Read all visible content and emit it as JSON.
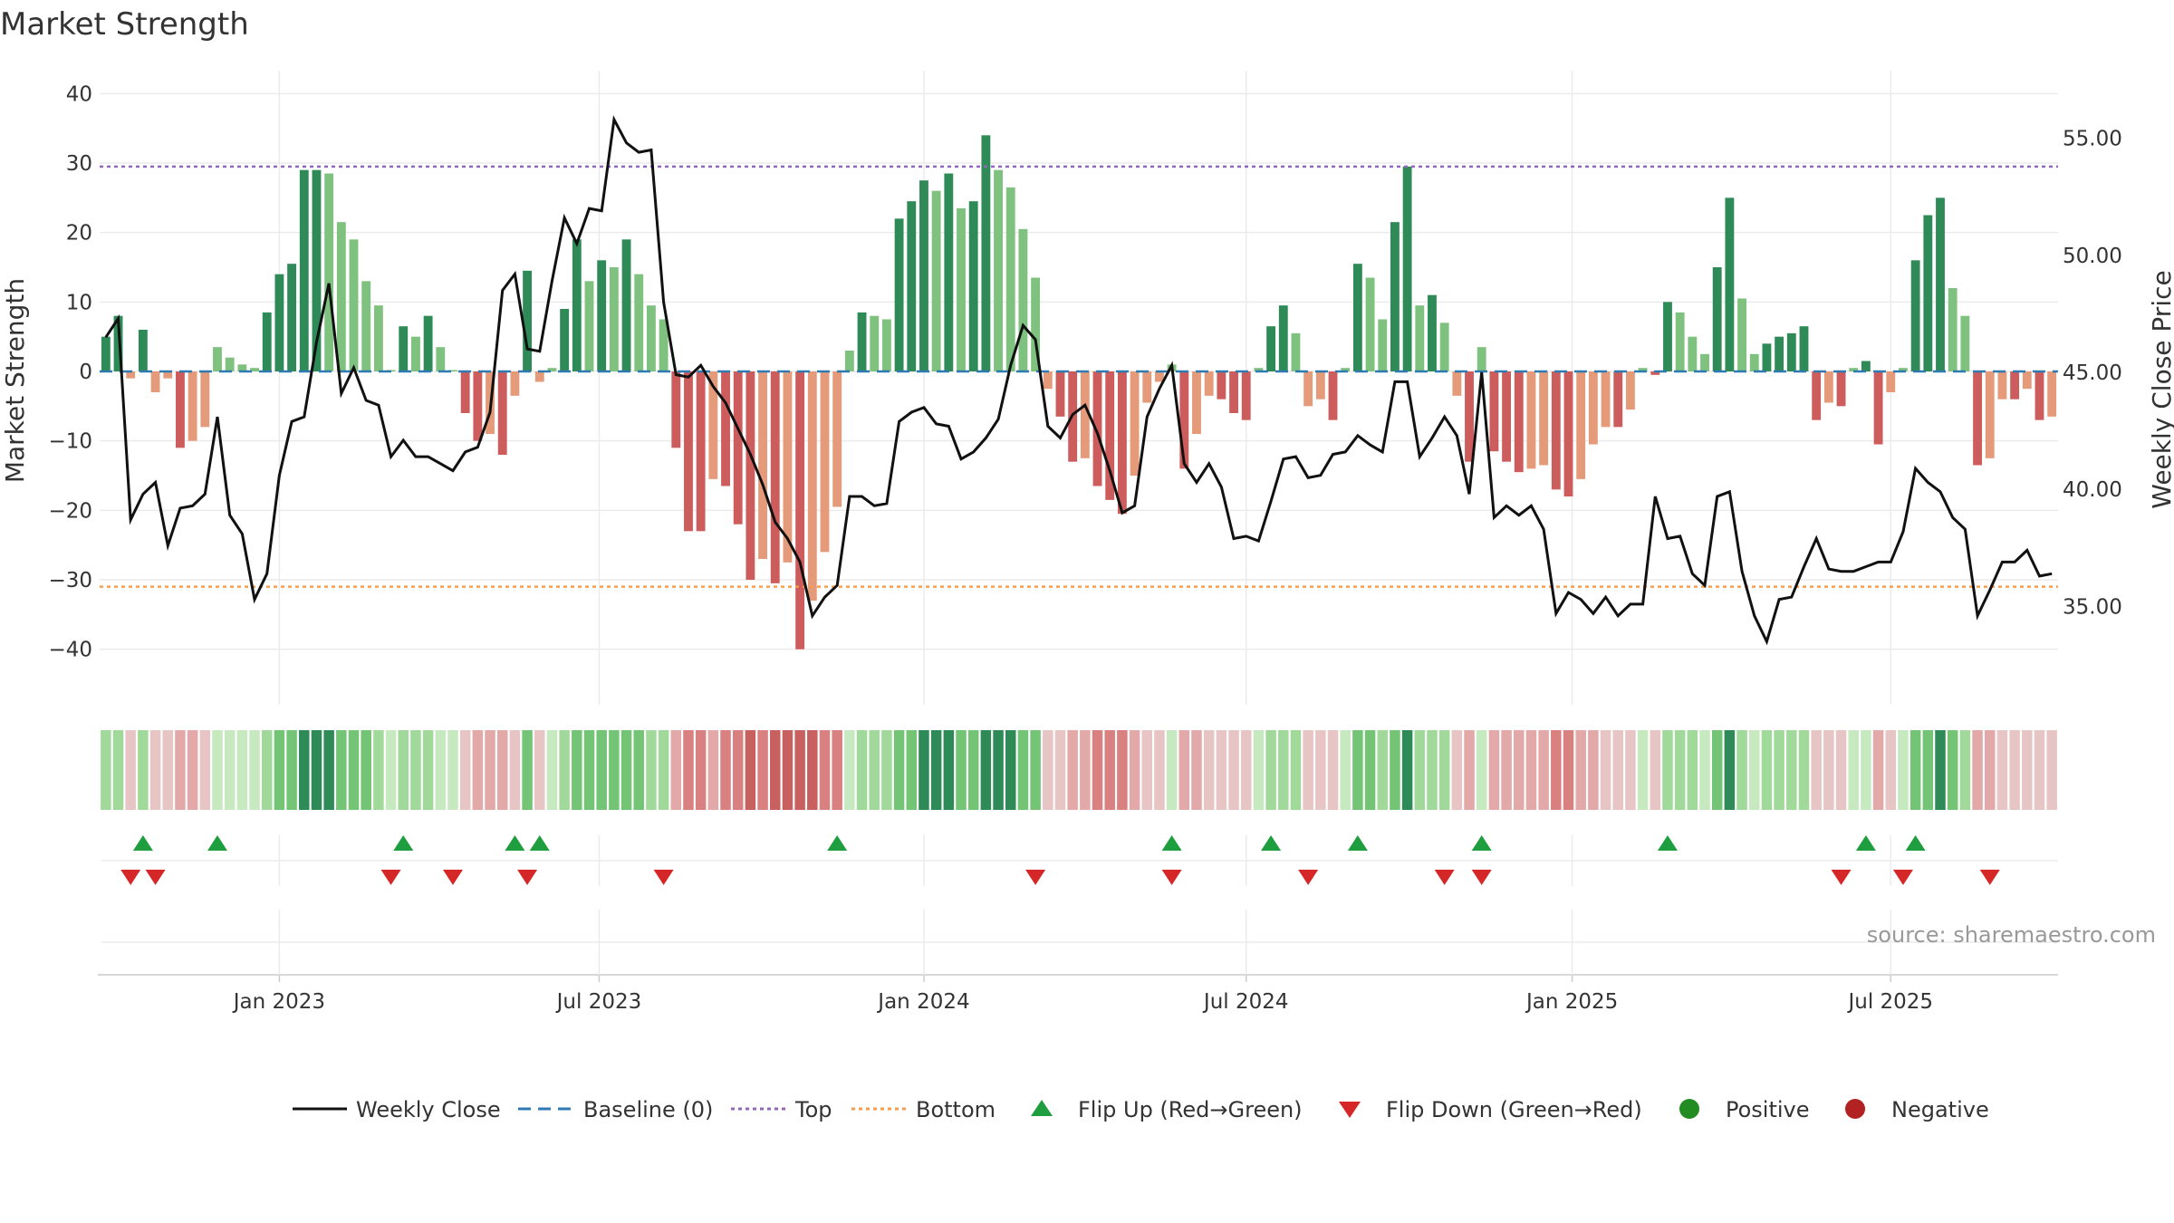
{
  "chart_data": {
    "type": "bar",
    "title": "Market Strength",
    "ylabel_left": "Market Strength",
    "ylabel_right": "Weekly Close Price",
    "ylim_left": [
      -48,
      42
    ],
    "ylim_right": [
      30.8,
      57.5
    ],
    "yticks_left": [
      "40",
      "30",
      "20",
      "10",
      "0",
      "−10",
      "−20",
      "−30",
      "−40"
    ],
    "yticks_left_values": [
      40,
      30,
      20,
      10,
      0,
      -10,
      -20,
      -30,
      -40
    ],
    "yticks_right": [
      "55.00",
      "50.00",
      "45.00",
      "40.00",
      "35.00"
    ],
    "yticks_right_values": [
      55,
      50,
      45,
      40,
      35
    ],
    "xticks": [
      "Jan 2023",
      "Jul 2023",
      "Jan 2024",
      "Jul 2024",
      "Jan 2025",
      "Jul 2025"
    ],
    "xticks_index": [
      14.5,
      40.3,
      66.5,
      92.5,
      118.8,
      144.5
    ],
    "top_line": 29.5,
    "bottom_line": -31,
    "strength": [
      5,
      8,
      -1,
      6,
      -3,
      -1,
      -11,
      -10,
      -8,
      3.5,
      2,
      1,
      0.5,
      8.5,
      14,
      15.5,
      29,
      29,
      28.5,
      21.5,
      19,
      13,
      9.5,
      0.2,
      6.5,
      5,
      8,
      3.5,
      0.2,
      -6,
      -10,
      -9,
      -12,
      -3.5,
      14.5,
      -1.5,
      0.5,
      9,
      19,
      13,
      16,
      15,
      19,
      14,
      9.5,
      7.5,
      -11,
      -23,
      -23,
      -15.5,
      -16.5,
      -22,
      -30,
      -27,
      -30.5,
      -27.5,
      -40,
      -33,
      -26,
      -19.5,
      3,
      8.5,
      8,
      7.5,
      22,
      24.5,
      27.5,
      26,
      28.5,
      23.5,
      24.5,
      34,
      29,
      26.5,
      20.5,
      13.5,
      -2.5,
      -6.5,
      -13,
      -12.5,
      -16.5,
      -18.5,
      -20.5,
      -15,
      -4.5,
      -1.5,
      1,
      -14,
      -9,
      -3.5,
      -4,
      -6,
      -7,
      0.5,
      6.5,
      9.5,
      5.5,
      -5,
      -4,
      -7,
      0.5,
      15.5,
      13.5,
      7.5,
      21.5,
      29.5,
      9.5,
      11,
      7,
      -3.5,
      -13,
      3.5,
      -11.5,
      -13,
      -14.5,
      -14,
      -13.5,
      -17,
      -18,
      -15.5,
      -10.5,
      -8,
      -8,
      -5.5,
      0.5,
      -0.5,
      10,
      8.5,
      5,
      2.5,
      15,
      25,
      10.5,
      2.5,
      4,
      5,
      5.5,
      6.5,
      -7,
      -4.5,
      -5,
      0.5,
      1.5,
      -10.5,
      -3,
      0.5,
      16,
      22.5,
      25,
      12,
      8,
      -13.5,
      -12.5,
      -4,
      -4,
      -2.5,
      -7,
      -6.5
    ],
    "price": [
      46.5,
      47.3,
      38.7,
      39.8,
      40.3,
      37.6,
      39.2,
      39.3,
      39.8,
      43.1,
      38.9,
      38.1,
      35.3,
      36.4,
      40.6,
      42.9,
      43.1,
      46.3,
      48.8,
      44.1,
      45.2,
      43.8,
      43.6,
      41.4,
      42.1,
      41.4,
      41.4,
      41.1,
      40.8,
      41.6,
      41.8,
      43.3,
      48.5,
      49.2,
      46.0,
      45.9,
      48.9,
      51.6,
      50.5,
      52.0,
      51.9,
      55.8,
      54.8,
      54.4,
      54.5,
      48.0,
      44.9,
      44.8,
      45.3,
      44.4,
      43.7,
      42.6,
      41.5,
      40.2,
      38.6,
      37.9,
      36.9,
      34.6,
      35.4,
      35.9,
      39.7,
      39.7,
      39.3,
      39.4,
      42.9,
      43.3,
      43.5,
      42.8,
      42.7,
      41.3,
      41.6,
      42.2,
      43.0,
      45.3,
      47.0,
      46.4,
      42.7,
      42.2,
      43.2,
      43.6,
      42.4,
      40.8,
      39.0,
      39.3,
      43.1,
      44.3,
      45.3,
      41.1,
      40.3,
      41.1,
      40.1,
      37.9,
      38.0,
      37.8,
      39.5,
      41.3,
      41.4,
      40.5,
      40.6,
      41.5,
      41.6,
      42.3,
      41.9,
      41.6,
      44.6,
      44.6,
      41.4,
      42.2,
      43.1,
      42.3,
      39.8,
      45.0,
      38.8,
      39.3,
      38.9,
      39.3,
      38.3,
      34.7,
      35.6,
      35.3,
      34.7,
      35.4,
      34.6,
      35.1,
      35.1,
      39.7,
      37.9,
      38.0,
      36.4,
      35.9,
      39.7,
      39.9,
      36.5,
      34.6,
      33.5,
      35.3,
      35.4,
      36.7,
      37.9,
      36.6,
      36.5,
      36.5,
      36.7,
      36.9,
      36.9,
      38.2,
      40.9,
      40.3,
      39.9,
      38.8,
      38.3,
      34.6,
      35.7,
      36.9,
      36.9,
      37.4,
      36.3,
      36.4
    ],
    "flip_up_index": [
      3,
      9,
      24,
      33,
      35,
      59,
      86,
      94,
      101,
      111,
      126,
      142,
      146
    ],
    "flip_down_index": [
      2,
      4,
      23,
      28,
      34,
      45,
      75,
      86,
      97,
      108,
      111,
      140,
      145,
      152
    ],
    "heat_colors": [
      "#2e8b57",
      "#74c476",
      "#a1d99b",
      "#c7e9c0",
      "#e7c5c5",
      "#e3a9a9",
      "#d98080",
      "#c96060"
    ]
  },
  "legend": {
    "weekly_close": "Weekly Close",
    "baseline": "Baseline (0)",
    "top": "Top",
    "bottom": "Bottom",
    "flip_up": "Flip Up (Red→Green)",
    "flip_down": "Flip Down (Green→Red)",
    "positive": "Positive",
    "negative": "Negative"
  },
  "source": "source: sharemaestro.com",
  "colors": {
    "pos_strong": "#2e8b57",
    "pos_light": "#7fc17f",
    "neg_strong": "#cd5c5c",
    "neg_light": "#e59a7a",
    "price_line": "#111111",
    "baseline": "#2f7ab0",
    "top": "#9467bd",
    "bottom": "#f0a050",
    "flip_up": "#1f9e3f",
    "flip_down": "#d62728",
    "positive_dot": "#228b22",
    "negative_dot": "#b22222"
  }
}
